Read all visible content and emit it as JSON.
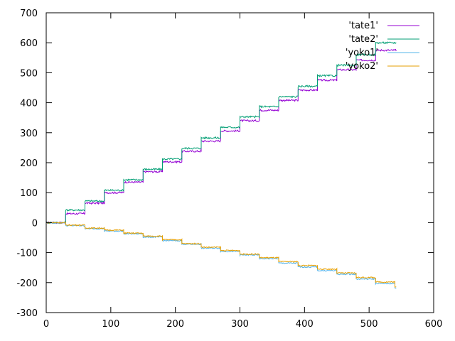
{
  "chart_data": {
    "type": "line",
    "title": "",
    "xlabel": "",
    "ylabel": "",
    "xlim": [
      0,
      600
    ],
    "ylim": [
      -300,
      700
    ],
    "x_ticks": [
      "0",
      "100",
      "200",
      "300",
      "400",
      "500",
      "600"
    ],
    "y_ticks": [
      "-300",
      "-200",
      "-100",
      "0",
      "100",
      "200",
      "300",
      "400",
      "500",
      "600",
      "700"
    ],
    "grid": false,
    "legend_position": "top-right",
    "x_step": 30,
    "x": [
      0,
      30,
      60,
      90,
      120,
      150,
      180,
      210,
      240,
      270,
      300,
      330,
      360,
      390,
      420,
      450,
      480,
      510,
      540
    ],
    "series": [
      {
        "name": "'tate1'",
        "color": "#9400d3",
        "values": [
          0,
          30,
          65,
          100,
          135,
          170,
          203,
          238,
          272,
          306,
          340,
          375,
          408,
          442,
          475,
          510,
          542,
          575,
          575
        ]
      },
      {
        "name": "'tate2'",
        "color": "#009e73",
        "values": [
          0,
          42,
          72,
          108,
          143,
          178,
          212,
          248,
          283,
          318,
          353,
          387,
          420,
          455,
          490,
          525,
          560,
          600,
          600
        ]
      },
      {
        "name": "'yoko1'",
        "color": "#56b4e9",
        "values": [
          0,
          -10,
          -20,
          -28,
          -37,
          -48,
          -60,
          -72,
          -85,
          -96,
          -108,
          -120,
          -135,
          -148,
          -160,
          -172,
          -188,
          -203,
          -218
        ]
      },
      {
        "name": "'yoko2'",
        "color": "#e69f00",
        "values": [
          0,
          -8,
          -18,
          -25,
          -35,
          -45,
          -57,
          -70,
          -82,
          -93,
          -105,
          -117,
          -130,
          -143,
          -155,
          -168,
          -183,
          -198,
          -215
        ]
      }
    ]
  }
}
